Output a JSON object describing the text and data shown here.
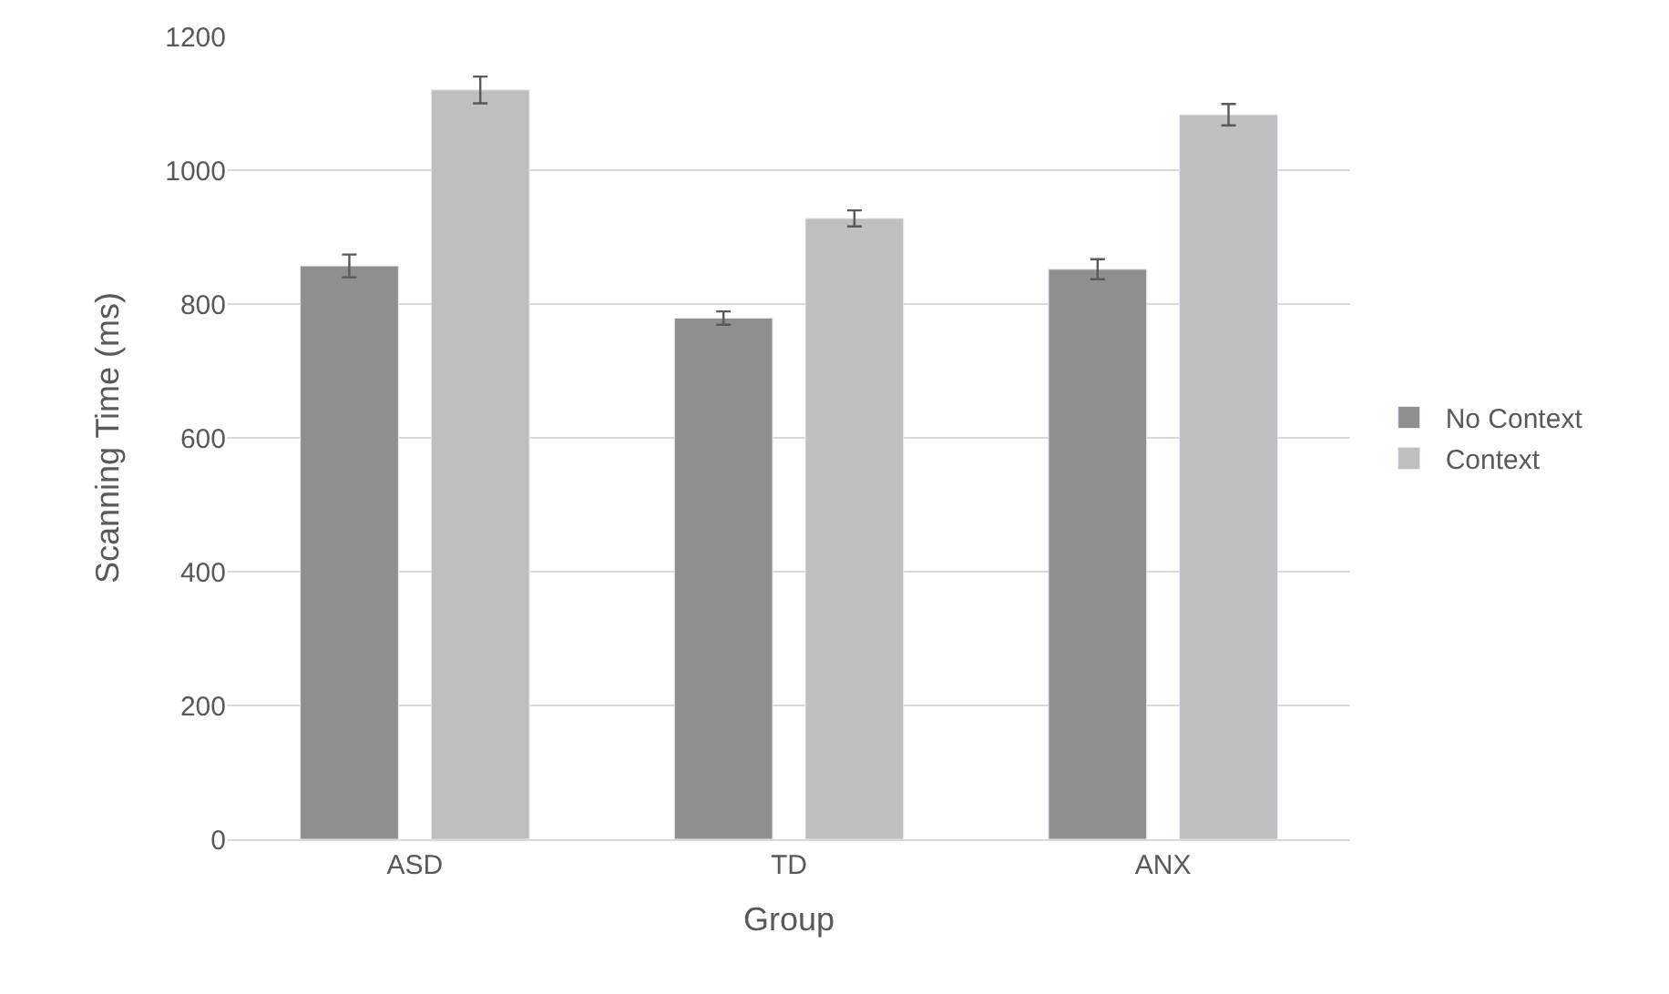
{
  "chart_data": {
    "type": "bar",
    "xlabel": "Group",
    "ylabel": "Scanning Time (ms)",
    "categories": [
      "ASD",
      "TD",
      "ANX"
    ],
    "series": [
      {
        "name": "No Context",
        "color": "#8f8f8f",
        "values": [
          857,
          779,
          852
        ],
        "errors": [
          17,
          10,
          15
        ]
      },
      {
        "name": "Context",
        "color": "#bfbfbf",
        "values": [
          1120,
          928,
          1083
        ],
        "errors": [
          20,
          12,
          16
        ]
      }
    ],
    "ylim": [
      0,
      1200
    ],
    "yticks": [
      0,
      200,
      400,
      600,
      800,
      1000,
      1200
    ],
    "grid": "y",
    "legend": "right"
  }
}
